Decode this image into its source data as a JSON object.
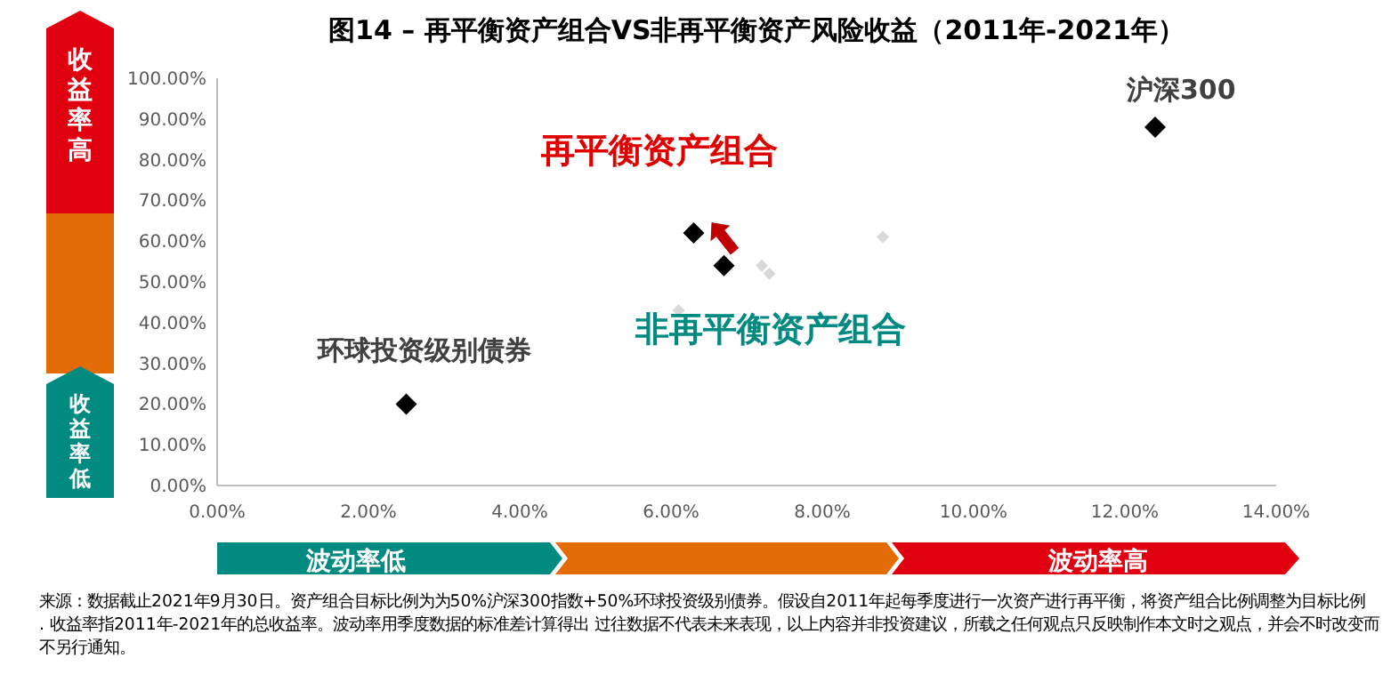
{
  "chart_data": {
    "type": "scatter",
    "title": "图14 – 再平衡资产组合VS非再平衡资产风险收益（2011年-2021年）",
    "marker": "diamond",
    "grid": false,
    "xlim": [
      0,
      14
    ],
    "xticks": [
      {
        "value": 0,
        "label": "0.00%"
      },
      {
        "value": 2,
        "label": "2.00%"
      },
      {
        "value": 4,
        "label": "4.00%"
      },
      {
        "value": 6,
        "label": "6.00%"
      },
      {
        "value": 8,
        "label": "8.00%"
      },
      {
        "value": 10,
        "label": "10.00%"
      },
      {
        "value": 12,
        "label": "12.00%"
      },
      {
        "value": 14,
        "label": "14.00%"
      }
    ],
    "ylim": [
      0,
      100
    ],
    "yticks": [
      {
        "value": 0,
        "label": "0.00%"
      },
      {
        "value": 10,
        "label": "10.00%"
      },
      {
        "value": 20,
        "label": "20.00%"
      },
      {
        "value": 30,
        "label": "30.00%"
      },
      {
        "value": 40,
        "label": "40.00%"
      },
      {
        "value": 50,
        "label": "50.00%"
      },
      {
        "value": 60,
        "label": "60.00%"
      },
      {
        "value": 70,
        "label": "70.00%"
      },
      {
        "value": 80,
        "label": "80.00%"
      },
      {
        "value": 90,
        "label": "90.00%"
      },
      {
        "value": 100,
        "label": "100.00%"
      }
    ],
    "series": [
      {
        "color": "#d9d9d9",
        "x": [
          6.1,
          7.2,
          7.3,
          8.8
        ],
        "values": [
          43,
          54,
          52,
          61
        ]
      },
      {
        "color": "#000000",
        "x": [
          2.5,
          6.3,
          6.7,
          12.4
        ],
        "values": [
          20,
          62,
          54,
          88
        ]
      }
    ],
    "annotations": [
      {
        "text": "环球投资级别债券",
        "x": 2.5,
        "y": 20
      },
      {
        "text": "再平衡资产组合",
        "x": 6.3,
        "y": 62
      },
      {
        "text": "非再平衡资产组合",
        "x": 6.7,
        "y": 54
      },
      {
        "text": "沪深300",
        "x": 12.4,
        "y": 88
      },
      "收益率高",
      "收益率低",
      "波动率低",
      "波动率高",
      "来源：数据截止2021年9月30日。资产组合目标比例为为50%沪深300指数+50%环球投资级别债券。假设自2011年起每季度进行一次资产进行再平衡，将资产组合比例调整为目标比例. 收益率指2011年-2021年的总收益率。波动率用季度数据的标准差计算得出 过往数据不代表未来表现，以上内容并非投资建议，所载之任何观点只反映制作本文时之观点，并会不时改变而不另行通知。"
    ]
  }
}
